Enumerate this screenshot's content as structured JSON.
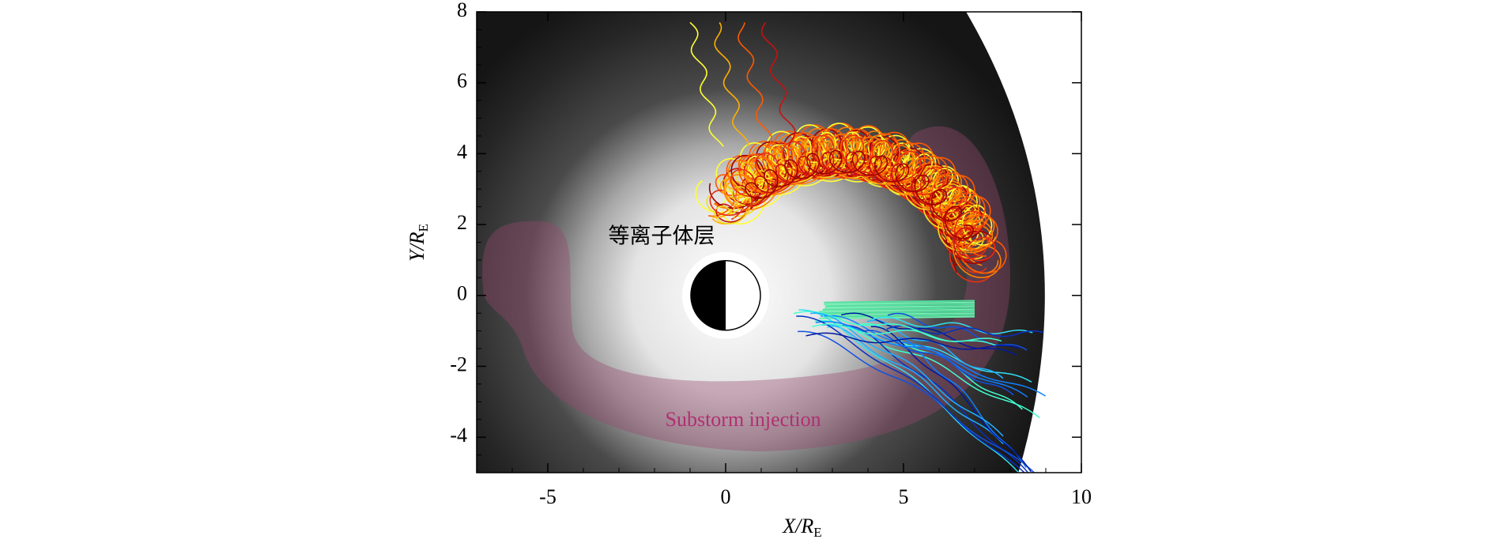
{
  "chart_data": {
    "type": "trajectory",
    "xlabel": {
      "text": "X/R",
      "subscript": "E"
    },
    "ylabel": {
      "text": "Y/R",
      "subscript": "E"
    },
    "xlim": [
      -7,
      10
    ],
    "xticks": [
      -5,
      0,
      5,
      10
    ],
    "ylim": [
      -5,
      8
    ],
    "yticks": [
      -4,
      -2,
      0,
      2,
      4,
      6,
      8
    ],
    "annotations": [
      "等离子体层",
      "Substorm injection"
    ]
  }
}
